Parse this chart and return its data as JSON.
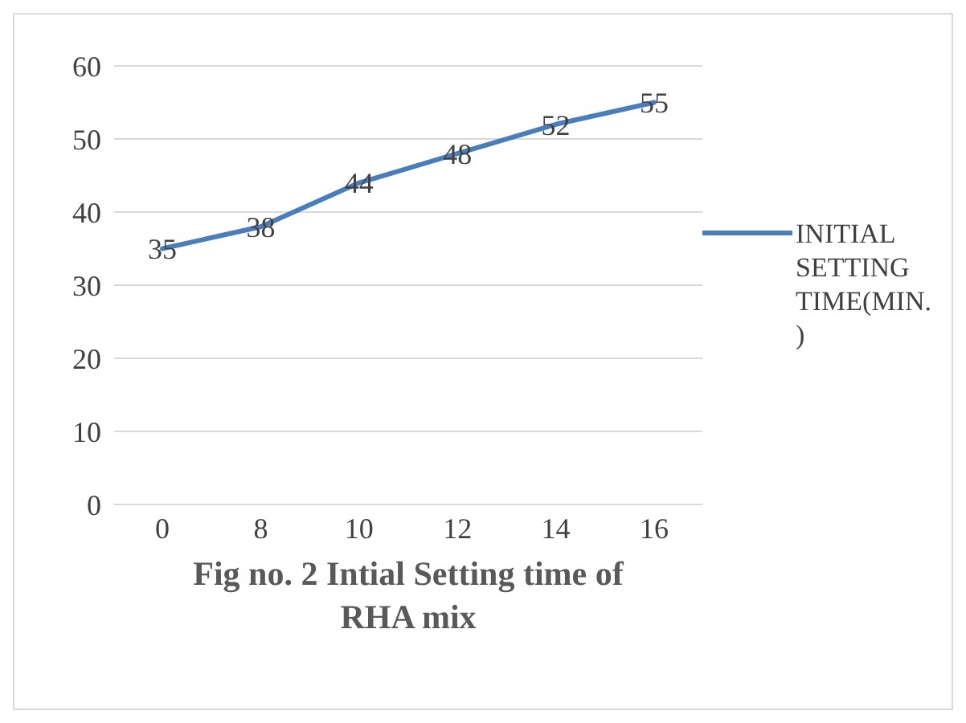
{
  "chart_data": {
    "type": "line",
    "title": "Fig no. 2 Intial Setting time of RHA mix",
    "categories": [
      "0",
      "8",
      "10",
      "12",
      "14",
      "16"
    ],
    "series": [
      {
        "name": "INITIAL SETTING TIME(MIN.)",
        "color": "#4a7ebb",
        "values": [
          35,
          38,
          44,
          48,
          52,
          55
        ]
      }
    ],
    "ylim": [
      0,
      60
    ],
    "yticks": [
      0,
      10,
      20,
      30,
      40,
      50,
      60
    ],
    "grid": "y",
    "legend": "right",
    "data_labels": true,
    "marker": "none",
    "line_style": "solid"
  }
}
